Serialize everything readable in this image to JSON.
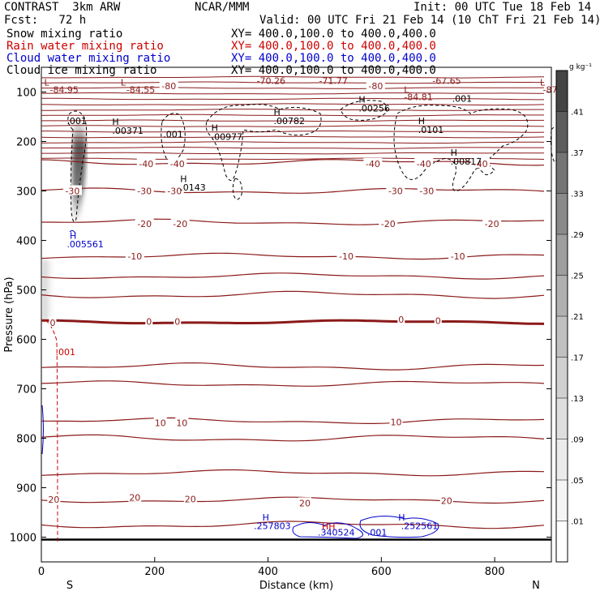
{
  "header": {
    "title": "CONTRAST  3km ARW",
    "center": "NCAR/MMM",
    "init": "Init: 00 UTC Tue 18 Feb 14",
    "fcst": "Fcst:   72 h",
    "valid": "Valid: 00 UTC Fri 21 Feb 14 (10 ChT Fri 21 Feb 14)",
    "fields": [
      {
        "name": "Snow mixing ratio",
        "xy": "XY= 400.0,100.0 to 400.0,400.0",
        "color": "#000000"
      },
      {
        "name": "Rain water mixing ratio",
        "xy": "XY= 400.0,100.0 to 400.0,400.0",
        "color": "#cc0000"
      },
      {
        "name": "Cloud water mixing ratio",
        "xy": "XY= 400.0,100.0 to 400.0,400.0",
        "color": "#0000cc"
      },
      {
        "name": "Cloud ice mixing ratio",
        "xy": "XY= 400.0,100.0 to 400.0,400.0",
        "color": "#000000"
      }
    ]
  },
  "chart_data": {
    "type": "cross-section contour",
    "xlabel": "Distance (km)",
    "ylabel": "Pressure (hPa)",
    "xlim": [
      0,
      900
    ],
    "ylim": [
      1050,
      50
    ],
    "xticks": [
      0,
      200,
      400,
      600,
      800
    ],
    "yticks": [
      100,
      200,
      300,
      400,
      500,
      600,
      700,
      800,
      900,
      1000
    ],
    "endpoints": {
      "left": "S",
      "right": "N"
    },
    "colorbar": {
      "unit": "g kg⁻¹",
      "levels": [
        ".01",
        ".05",
        ".09",
        ".13",
        ".17",
        ".21",
        ".25",
        ".29",
        ".33",
        ".37",
        ".41"
      ],
      "colors": [
        "#ffffff",
        "#f5f5f5",
        "#ebebeb",
        "#dedede",
        "#d0d0d0",
        "#c0c0c0",
        "#b0b0b0",
        "#9e9e9e",
        "#8a8a8a",
        "#747474",
        "#5c5c5c",
        "#444444"
      ]
    },
    "temperature_contours": [
      {
        "label": "20",
        "p": 925
      },
      {
        "label": "20",
        "p": 870
      },
      {
        "label": "10",
        "p": 765
      },
      {
        "label": "10",
        "p": 690
      },
      {
        "label": "0",
        "p": 565
      },
      {
        "label": "-10",
        "p": 472
      },
      {
        "label": "-10",
        "p": 432
      },
      {
        "label": "-20",
        "p": 363
      },
      {
        "label": "-30",
        "p": 300
      },
      {
        "label": "-40",
        "p": 242
      }
    ],
    "contour_labels": [
      {
        "text": "-10",
        "x": 165,
        "p": 432
      },
      {
        "text": "-10",
        "x": 538,
        "p": 432
      },
      {
        "text": "-10",
        "x": 735,
        "p": 432
      },
      {
        "text": "-20",
        "x": 182,
        "p": 366
      },
      {
        "text": "-20",
        "x": 245,
        "p": 366
      },
      {
        "text": "-20",
        "x": 612,
        "p": 366
      },
      {
        "text": "-20",
        "x": 795,
        "p": 366
      },
      {
        "text": "-30",
        "x": 55,
        "p": 300
      },
      {
        "text": "-30",
        "x": 182,
        "p": 300
      },
      {
        "text": "-30",
        "x": 235,
        "p": 300
      },
      {
        "text": "-30",
        "x": 625,
        "p": 300
      },
      {
        "text": "-30",
        "x": 680,
        "p": 300
      },
      {
        "text": "-40",
        "x": 185,
        "p": 245
      },
      {
        "text": "-40",
        "x": 240,
        "p": 245
      },
      {
        "text": "-40",
        "x": 585,
        "p": 245
      },
      {
        "text": "-40",
        "x": 675,
        "p": 245
      },
      {
        "text": "-40",
        "x": 775,
        "p": 245
      },
      {
        "text": "-80",
        "x": 225,
        "p": 88
      },
      {
        "text": "-80",
        "x": 590,
        "p": 88
      },
      {
        "text": "0",
        "x": 20,
        "p": 566
      },
      {
        "text": "0",
        "x": 190,
        "p": 564
      },
      {
        "text": "0",
        "x": 240,
        "p": 564
      },
      {
        "text": "0",
        "x": 635,
        "p": 560
      },
      {
        "text": "0",
        "x": 700,
        "p": 562
      },
      {
        "text": "10",
        "x": 210,
        "p": 769
      },
      {
        "text": "10",
        "x": 248,
        "p": 769
      },
      {
        "text": "10",
        "x": 626,
        "p": 767
      },
      {
        "text": "20",
        "x": 22,
        "p": 924
      },
      {
        "text": "20",
        "x": 165,
        "p": 920
      },
      {
        "text": "20",
        "x": 263,
        "p": 923
      },
      {
        "text": "20",
        "x": 465,
        "p": 931
      },
      {
        "text": "20",
        "x": 715,
        "p": 926
      }
    ],
    "extrema": [
      {
        "text": "L",
        "x": 5,
        "p": 80,
        "color": "#8b1a1a"
      },
      {
        "text": "-84.95",
        "x": 15,
        "p": 95,
        "color": "#8b1a1a"
      },
      {
        "text": "L",
        "x": 140,
        "p": 80,
        "color": "#8b1a1a"
      },
      {
        "text": "-84.55",
        "x": 150,
        "p": 95,
        "color": "#8b1a1a"
      },
      {
        "text": "-70.26",
        "x": 380,
        "p": 77,
        "color": "#8b1a1a"
      },
      {
        "text": "-71.77",
        "x": 490,
        "p": 77,
        "color": "#8b1a1a"
      },
      {
        "text": "-67.65",
        "x": 690,
        "p": 77,
        "color": "#8b1a1a"
      },
      {
        "text": "L",
        "x": 640,
        "p": 95,
        "color": "#8b1a1a"
      },
      {
        "text": "-84.81",
        "x": 640,
        "p": 110,
        "color": "#8b1a1a"
      },
      {
        "text": "L",
        "x": 880,
        "p": 80,
        "color": "#8b1a1a"
      },
      {
        "text": "-87",
        "x": 885,
        "p": 95,
        "color": "#8b1a1a"
      },
      {
        "text": ".001",
        "x": 45,
        "p": 158,
        "color": "#000000"
      },
      {
        "text": "H",
        "x": 125,
        "p": 160,
        "color": "#000000"
      },
      {
        "text": ".00371",
        "x": 125,
        "p": 178,
        "color": "#000000"
      },
      {
        "text": ".001",
        "x": 215,
        "p": 185,
        "color": "#000000"
      },
      {
        "text": "H",
        "x": 300,
        "p": 172,
        "color": "#000000"
      },
      {
        "text": ".00977",
        "x": 300,
        "p": 190,
        "color": "#000000"
      },
      {
        "text": "H",
        "x": 410,
        "p": 140,
        "color": "#000000"
      },
      {
        "text": ".00782",
        "x": 410,
        "p": 158,
        "color": "#000000"
      },
      {
        "text": "H",
        "x": 560,
        "p": 115,
        "color": "#000000"
      },
      {
        "text": ".00256",
        "x": 560,
        "p": 133,
        "color": "#000000"
      },
      {
        "text": ".001",
        "x": 725,
        "p": 113,
        "color": "#000000"
      },
      {
        "text": "H",
        "x": 665,
        "p": 158,
        "color": "#000000"
      },
      {
        "text": ".0101",
        "x": 665,
        "p": 176,
        "color": "#000000"
      },
      {
        "text": "H",
        "x": 722,
        "p": 222,
        "color": "#000000"
      },
      {
        "text": ".00817",
        "x": 722,
        "p": 240,
        "color": "#000000"
      },
      {
        "text": "H",
        "x": 245,
        "p": 275,
        "color": "#000000"
      },
      {
        "text": ".0143",
        "x": 245,
        "p": 293,
        "color": "#000000"
      },
      {
        "text": "H",
        "x": 50,
        "p": 390,
        "color": "#0000cc"
      },
      {
        "text": ".005561",
        "x": 45,
        "p": 407,
        "color": "#0000cc"
      },
      {
        "text": "H",
        "x": 390,
        "p": 960,
        "color": "#0000cc"
      },
      {
        "text": ".257803",
        "x": 375,
        "p": 977,
        "color": "#0000cc"
      },
      {
        "text": "H",
        "x": 630,
        "p": 960,
        "color": "#0000cc"
      },
      {
        "text": ".252561",
        "x": 635,
        "p": 977,
        "color": "#0000cc"
      },
      {
        "text": ".001",
        "x": 575,
        "p": 990,
        "color": "#0000cc"
      },
      {
        "text": "HH",
        "x": 495,
        "p": 978,
        "color": "#cc0000"
      },
      {
        "text": ".340524",
        "x": 488,
        "p": 990,
        "color": "#0000cc"
      },
      {
        "text": ".001",
        "x": 25,
        "p": 625,
        "color": "#cc0000"
      }
    ]
  }
}
